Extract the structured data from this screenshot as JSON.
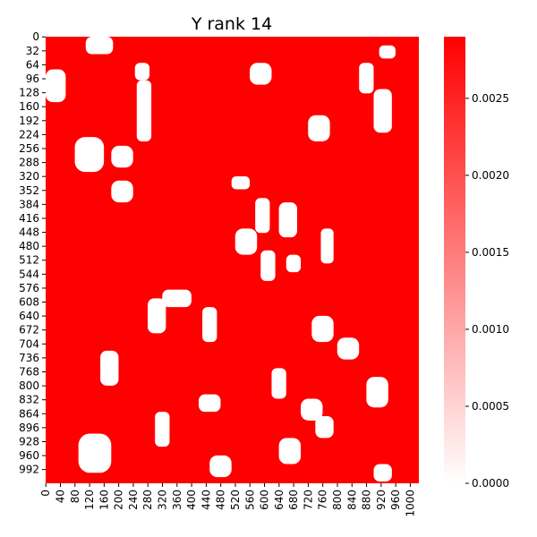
{
  "chart_data": {
    "type": "heatmap",
    "title": "Y rank 14",
    "xlabel": "",
    "ylabel": "",
    "n_rows": 1024,
    "n_cols": 1024,
    "x_ticks": [
      0,
      40,
      80,
      120,
      160,
      200,
      240,
      280,
      320,
      360,
      400,
      440,
      480,
      520,
      560,
      600,
      640,
      680,
      720,
      760,
      800,
      840,
      880,
      920,
      960,
      1000
    ],
    "y_ticks": [
      0,
      32,
      64,
      96,
      128,
      160,
      192,
      224,
      256,
      288,
      320,
      352,
      384,
      416,
      448,
      480,
      512,
      544,
      576,
      608,
      640,
      672,
      704,
      736,
      768,
      800,
      832,
      864,
      896,
      928,
      960,
      992
    ],
    "colorbar": {
      "min": 0.0,
      "max": 0.0029,
      "ticks": [
        "0.0000",
        "0.0005",
        "0.0010",
        "0.0015",
        "0.0020",
        "0.0025"
      ],
      "color_low": "#ffffff",
      "color_high": "#ff0000"
    },
    "dominant_value": 0.0029,
    "white_regions": [
      {
        "rows": [
          0,
          40
        ],
        "cols": [
          110,
          185
        ]
      },
      {
        "rows": [
          20,
          50
        ],
        "cols": [
          915,
          960
        ]
      },
      {
        "rows": [
          60,
          100
        ],
        "cols": [
          245,
          285
        ]
      },
      {
        "rows": [
          100,
          240
        ],
        "cols": [
          250,
          290
        ]
      },
      {
        "rows": [
          75,
          150
        ],
        "cols": [
          0,
          55
        ]
      },
      {
        "rows": [
          60,
          110
        ],
        "cols": [
          560,
          620
        ]
      },
      {
        "rows": [
          60,
          130
        ],
        "cols": [
          860,
          900
        ]
      },
      {
        "rows": [
          120,
          220
        ],
        "cols": [
          900,
          950
        ]
      },
      {
        "rows": [
          180,
          240
        ],
        "cols": [
          720,
          780
        ]
      },
      {
        "rows": [
          230,
          310
        ],
        "cols": [
          80,
          160
        ]
      },
      {
        "rows": [
          250,
          300
        ],
        "cols": [
          180,
          240
        ]
      },
      {
        "rows": [
          320,
          350
        ],
        "cols": [
          510,
          560
        ]
      },
      {
        "rows": [
          330,
          380
        ],
        "cols": [
          180,
          240
        ]
      },
      {
        "rows": [
          370,
          450
        ],
        "cols": [
          575,
          615
        ]
      },
      {
        "rows": [
          380,
          460
        ],
        "cols": [
          640,
          690
        ]
      },
      {
        "rows": [
          440,
          500
        ],
        "cols": [
          520,
          580
        ]
      },
      {
        "rows": [
          440,
          520
        ],
        "cols": [
          755,
          790
        ]
      },
      {
        "rows": [
          490,
          560
        ],
        "cols": [
          590,
          630
        ]
      },
      {
        "rows": [
          500,
          540
        ],
        "cols": [
          660,
          700
        ]
      },
      {
        "rows": [
          580,
          620
        ],
        "cols": [
          320,
          400
        ]
      },
      {
        "rows": [
          600,
          680
        ],
        "cols": [
          280,
          330
        ]
      },
      {
        "rows": [
          620,
          700
        ],
        "cols": [
          430,
          470
        ]
      },
      {
        "rows": [
          640,
          700
        ],
        "cols": [
          730,
          790
        ]
      },
      {
        "rows": [
          690,
          740
        ],
        "cols": [
          800,
          860
        ]
      },
      {
        "rows": [
          720,
          800
        ],
        "cols": [
          150,
          200
        ]
      },
      {
        "rows": [
          760,
          830
        ],
        "cols": [
          620,
          660
        ]
      },
      {
        "rows": [
          780,
          850
        ],
        "cols": [
          880,
          940
        ]
      },
      {
        "rows": [
          820,
          860
        ],
        "cols": [
          420,
          480
        ]
      },
      {
        "rows": [
          830,
          880
        ],
        "cols": [
          700,
          760
        ]
      },
      {
        "rows": [
          860,
          940
        ],
        "cols": [
          300,
          340
        ]
      },
      {
        "rows": [
          870,
          920
        ],
        "cols": [
          740,
          790
        ]
      },
      {
        "rows": [
          910,
          1000
        ],
        "cols": [
          90,
          180
        ]
      },
      {
        "rows": [
          920,
          980
        ],
        "cols": [
          640,
          700
        ]
      },
      {
        "rows": [
          960,
          1010
        ],
        "cols": [
          450,
          510
        ]
      },
      {
        "rows": [
          980,
          1020
        ],
        "cols": [
          900,
          950
        ]
      }
    ]
  }
}
